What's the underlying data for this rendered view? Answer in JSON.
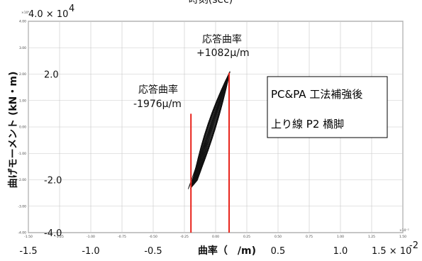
{
  "chart_data": {
    "type": "line",
    "header_text": "時刻(sec)",
    "xlabel": "曲率（　/m)",
    "ylabel": "曲げモーメント (kN・m)",
    "xlim": [
      -0.015,
      0.015
    ],
    "ylim": [
      -40000,
      40000
    ],
    "grid": true,
    "x_tick_labels_small": [
      "-1.50",
      "-1.25",
      "-1.00",
      "-0.75",
      "-0.50",
      "-0.25",
      "0.00",
      "0.25",
      "0.50",
      "0.75",
      "1.00",
      "1.25",
      "1.50"
    ],
    "x_tick_values_small": [
      -0.015,
      -0.0125,
      -0.01,
      -0.0075,
      -0.005,
      -0.0025,
      0,
      0.0025,
      0.005,
      0.0075,
      0.01,
      0.0125,
      0.015
    ],
    "x_scale_small": "×10⁻²",
    "y_tick_labels_small": [
      "-4.00",
      "-3.00",
      "-2.00",
      "-1.00",
      "0.00",
      "1.00",
      "2.00",
      "3.00",
      "4.00"
    ],
    "y_tick_values_small": [
      -40000,
      -30000,
      -20000,
      -10000,
      0,
      10000,
      20000,
      30000,
      40000
    ],
    "y_scale_small": "×10⁴",
    "x_tick_labels_big": [
      "-1.5",
      "-1.0",
      "-0.5",
      "0.5",
      "1.0"
    ],
    "x_tick_values_big": [
      -0.015,
      -0.01,
      -0.005,
      0.005,
      0.01
    ],
    "x_max_label": "1.5 × 10",
    "x_max_exponent": "-2",
    "y_max_label": "4.0 × 10",
    "y_max_exponent": "4",
    "y_tick_labels_big": [
      "2.0",
      "-2.0",
      "-4.0"
    ],
    "y_tick_values_big": [
      20000,
      -20000,
      -40000
    ],
    "hysteresis_loop": {
      "x": [
        -0.0022,
        0.00115,
        0.0008,
        0.0001,
        -0.0014,
        -0.0022
      ],
      "y": [
        -23500,
        21000,
        17500,
        6000,
        -15000,
        -23500
      ]
    },
    "markers": [
      {
        "name": "応答曲率 -1976μ/m",
        "x": -0.001976,
        "y_top": 5000,
        "y_bottom": -40000,
        "color": "#e8221a"
      },
      {
        "name": "応答曲率 +1082μ/m",
        "x": 0.001082,
        "y_top": 20500,
        "y_bottom": -40000,
        "color": "#e8221a"
      }
    ],
    "annotations": [
      {
        "line1": "応答曲率",
        "line2": "+1082μ/m"
      },
      {
        "line1": "応答曲率",
        "line2": "-1976μ/m"
      }
    ],
    "legend_box": {
      "line1": "PC&PA 工法補強後",
      "line2": "上り線 P2 橋脚"
    }
  }
}
